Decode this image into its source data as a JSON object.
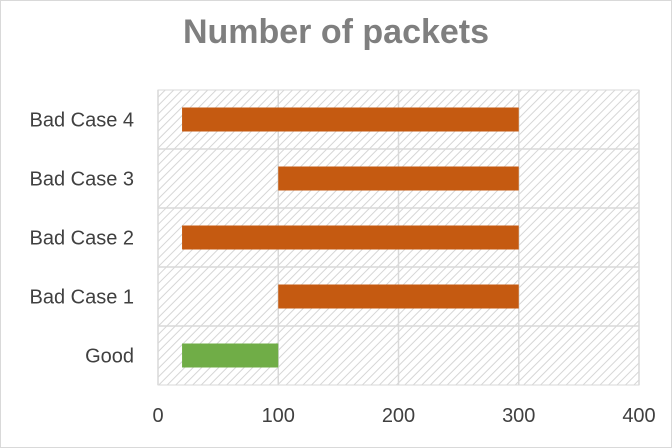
{
  "chart_data": {
    "type": "bar",
    "orientation": "horizontal",
    "stacked_floating": true,
    "title": "Number of packets",
    "categories": [
      "Bad Case 4",
      "Bad Case 3",
      "Bad Case 2",
      "Bad Case 1",
      "Good"
    ],
    "series": [
      {
        "start": [
          20,
          100,
          20,
          100,
          20
        ],
        "end": [
          300,
          300,
          300,
          300,
          100
        ]
      }
    ],
    "bar_colors": [
      "#c55a11",
      "#c55a11",
      "#c55a11",
      "#c55a11",
      "#70ad47"
    ],
    "xlim": [
      0,
      400
    ],
    "xticks": [
      "0",
      "100",
      "200",
      "300",
      "400"
    ],
    "xlabel": "",
    "ylabel": "",
    "grid": true,
    "plot_background": "hatched-light-gray",
    "legend": "none"
  }
}
